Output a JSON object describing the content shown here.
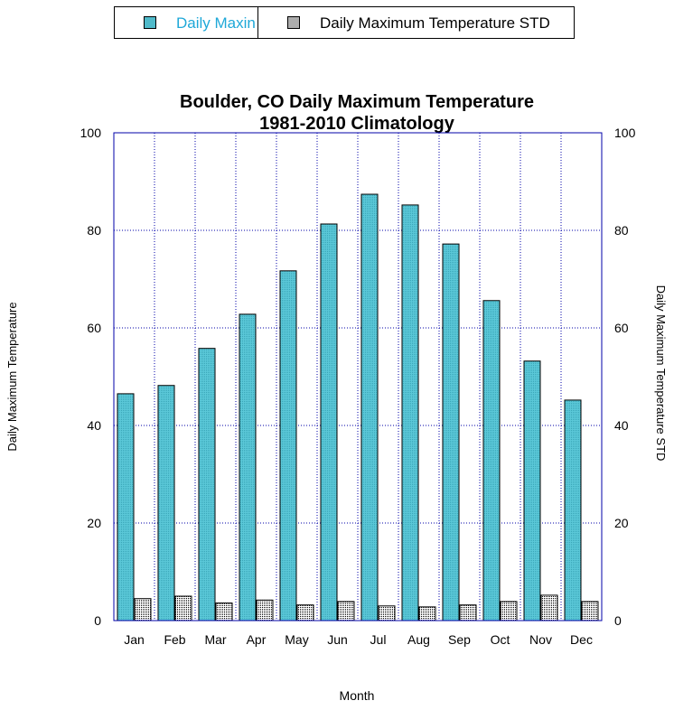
{
  "chart_data": {
    "type": "bar",
    "title": "Boulder, CO Daily Maximum Temperature",
    "subtitle": "1981-2010 Climatology",
    "xlabel": "Month",
    "ylabel": "Daily Maximum Temperature",
    "ylabel_right": "Daily Maximum Temperature STD",
    "categories": [
      "Jan",
      "Feb",
      "Mar",
      "Apr",
      "May",
      "Jun",
      "Jul",
      "Aug",
      "Sep",
      "Oct",
      "Nov",
      "Dec"
    ],
    "series": [
      {
        "name": "Daily Maximum Temperature",
        "legend_text": "Daily Maxin",
        "axis": "left",
        "color": "#5bc8d8",
        "values": [
          46.5,
          48.2,
          55.8,
          62.8,
          71.7,
          81.3,
          87.4,
          85.2,
          77.2,
          65.6,
          53.2,
          45.2
        ]
      },
      {
        "name": "Daily Maximum Temperature STD",
        "legend_text": "Daily Maximum Temperature STD",
        "axis": "right",
        "color": "#e6e6e6",
        "values": [
          4.5,
          5.0,
          3.6,
          4.2,
          3.2,
          3.9,
          3.0,
          2.8,
          3.2,
          3.9,
          5.2,
          3.9
        ]
      }
    ],
    "ylim": [
      0,
      100
    ],
    "ylim_right": [
      0,
      100
    ],
    "yticks": [
      0,
      20,
      40,
      60,
      80,
      100
    ],
    "grid": true,
    "grid_color": "#0000aa",
    "legend_position": "top",
    "legend_text_color": "#1fa8d8"
  }
}
